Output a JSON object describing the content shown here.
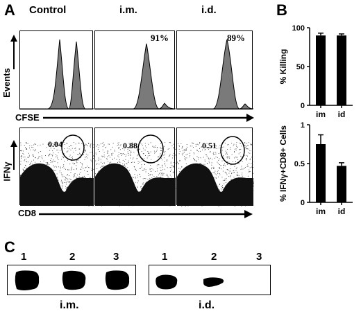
{
  "panels": {
    "A": {
      "letter": "A",
      "headers": [
        "Control",
        "i.m.",
        "i.d."
      ],
      "histogram_percentages": [
        "",
        "91%",
        "89%"
      ],
      "y_label_top": "Events",
      "x_label_top": "CFSE",
      "gate_values": [
        "0.04",
        "0.88",
        "0.51"
      ],
      "y_label_bottom": "IFNγ",
      "x_label_bottom": "CD8"
    },
    "B": {
      "letter": "B"
    },
    "C": {
      "letter": "C",
      "lane_numbers": [
        "1",
        "2",
        "3"
      ],
      "blots": [
        {
          "route": "i.m.",
          "bands": [
            1,
            1,
            1
          ]
        },
        {
          "route": "i.d.",
          "bands": [
            1,
            0.5,
            0
          ]
        }
      ]
    }
  },
  "chart_data": [
    {
      "type": "bar",
      "categories": [
        "im",
        "id"
      ],
      "values": [
        90,
        90
      ],
      "errors": [
        3,
        2
      ],
      "ylabel": "% Killing",
      "ylim": [
        0,
        100
      ],
      "yticks": [
        "0",
        "50",
        "100"
      ],
      "color": "#000000"
    },
    {
      "type": "bar",
      "categories": [
        "im",
        "id"
      ],
      "values": [
        0.75,
        0.47
      ],
      "errors": [
        0.12,
        0.04
      ],
      "ylabel": "% IFNγ+CD8+ Cells",
      "ylim": [
        0,
        1.0
      ],
      "yticks": [
        "0",
        "0.5",
        "1"
      ],
      "color": "#000000"
    }
  ]
}
